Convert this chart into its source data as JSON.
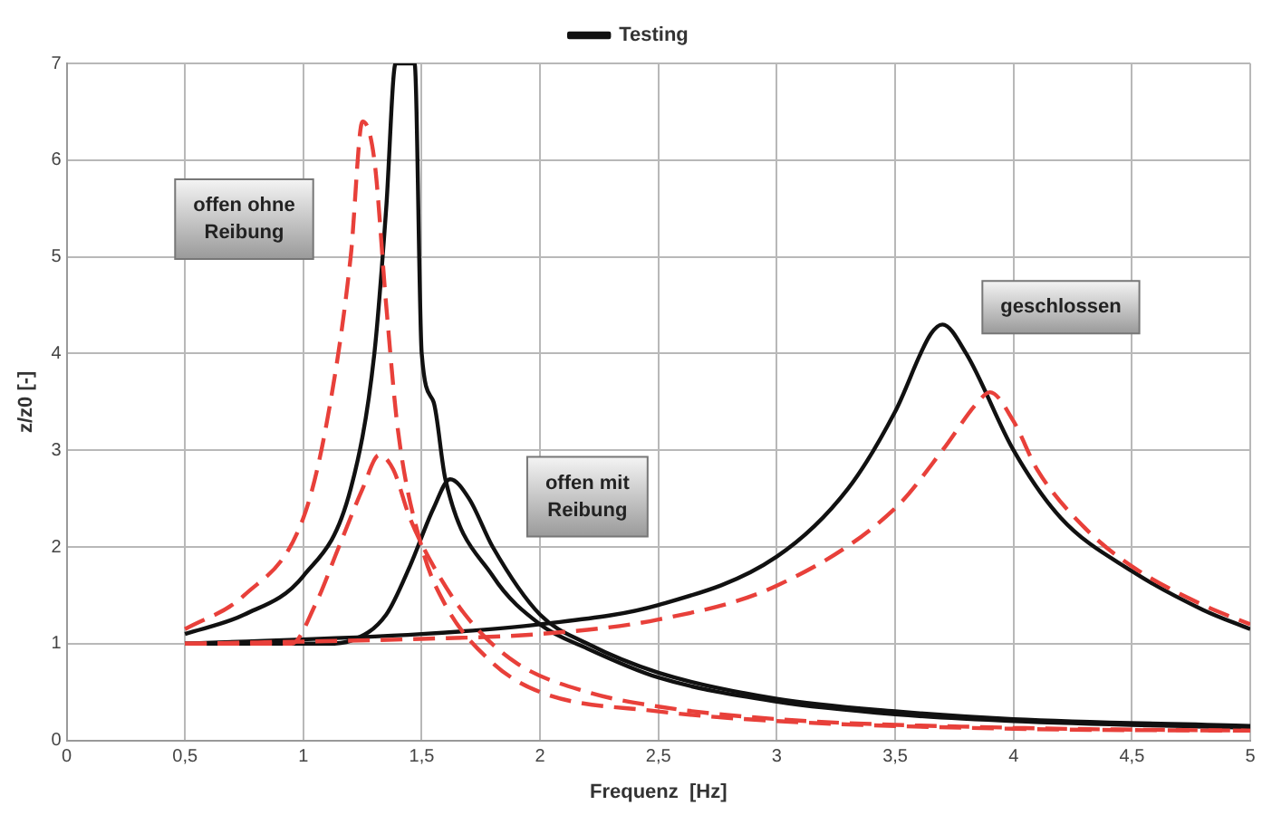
{
  "chart_data": {
    "type": "line",
    "xlabel": "Frequenz  [Hz]",
    "ylabel": "z/z0 [-]",
    "xlim": [
      0,
      5
    ],
    "ylim": [
      0,
      7
    ],
    "xticks": [
      0,
      {
        "value": 0.5,
        "label": "0,5"
      },
      1,
      {
        "value": 1.5,
        "label": "1,5"
      },
      2,
      {
        "value": 2.5,
        "label": "2,5"
      },
      3,
      {
        "value": 3.5,
        "label": "3,5"
      },
      4,
      {
        "value": 4.5,
        "label": "4,5"
      },
      5
    ],
    "yticks": [
      0,
      1,
      2,
      3,
      4,
      5,
      6,
      7
    ],
    "grid": true,
    "legend": "top",
    "marker": "none",
    "series": [
      {
        "color": "#e8403a",
        "line_style": "dashed",
        "x": [
          0.5,
          0.75,
          1.0,
          1.1,
          1.2,
          1.25,
          1.3,
          1.35,
          1.4,
          1.5,
          1.6,
          1.8,
          2.0,
          2.5,
          3.0,
          4.0,
          5.0
        ],
        "values": [
          1.15,
          1.5,
          2.3,
          3.3,
          5.0,
          6.4,
          6.0,
          4.5,
          3.2,
          2.0,
          1.4,
          0.8,
          0.5,
          0.3,
          0.2,
          0.12,
          0.1
        ]
      },
      {
        "color": "#e8403a",
        "line_style": "dashed",
        "x": [
          0.5,
          0.95,
          1.05,
          1.15,
          1.25,
          1.32,
          1.38,
          1.45,
          1.55,
          1.7,
          1.9,
          2.2,
          2.5,
          3.0,
          4.0,
          5.0
        ],
        "values": [
          1.0,
          1.0,
          1.4,
          2.0,
          2.6,
          2.95,
          2.8,
          2.3,
          1.8,
          1.25,
          0.8,
          0.5,
          0.35,
          0.22,
          0.13,
          0.1
        ]
      },
      {
        "color": "#e8403a",
        "line_style": "dashed",
        "x": [
          0.5,
          1.5,
          2.0,
          2.5,
          3.0,
          3.5,
          3.7,
          3.85,
          3.9,
          4.0,
          4.1,
          4.3,
          4.5,
          4.8,
          5.0
        ],
        "values": [
          1.0,
          1.05,
          1.1,
          1.25,
          1.6,
          2.4,
          3.0,
          3.5,
          3.6,
          3.3,
          2.8,
          2.2,
          1.8,
          1.4,
          1.2
        ]
      },
      {
        "name": "Testing",
        "color": "#111111",
        "line_style": "solid",
        "x": [
          0.5,
          0.75,
          1.0,
          1.2,
          1.3,
          1.35,
          1.39,
          1.47,
          1.5,
          1.55,
          1.6,
          1.8,
          2.0,
          2.2,
          2.5,
          3.0,
          3.5,
          4.0,
          5.0
        ],
        "values": [
          1.1,
          1.3,
          1.7,
          2.6,
          4.0,
          5.5,
          7,
          7,
          4.0,
          3.5,
          2.7,
          1.7,
          1.2,
          0.95,
          0.65,
          0.4,
          0.27,
          0.2,
          0.13
        ]
      },
      {
        "color": "#111111",
        "line_style": "solid",
        "x": [
          0.5,
          1.1,
          1.2,
          1.35,
          1.45,
          1.55,
          1.62,
          1.7,
          1.8,
          2.0,
          2.2,
          2.5,
          3.0,
          3.5,
          4.0,
          5.0
        ],
        "values": [
          1.0,
          1.0,
          1.03,
          1.3,
          1.8,
          2.4,
          2.7,
          2.5,
          2.0,
          1.3,
          1.0,
          0.7,
          0.43,
          0.3,
          0.22,
          0.15
        ]
      },
      {
        "color": "#111111",
        "line_style": "solid",
        "x": [
          0.5,
          1.5,
          2.0,
          2.5,
          3.0,
          3.3,
          3.5,
          3.65,
          3.7,
          3.8,
          4.0,
          4.2,
          4.5,
          4.8,
          5.0
        ],
        "values": [
          1.0,
          1.1,
          1.2,
          1.4,
          1.9,
          2.6,
          3.4,
          4.2,
          4.3,
          4.0,
          3.0,
          2.3,
          1.75,
          1.35,
          1.15
        ]
      }
    ],
    "annotations": [
      "offen ohne Reibung",
      "offen mit Reibung",
      "geschlossen"
    ]
  }
}
